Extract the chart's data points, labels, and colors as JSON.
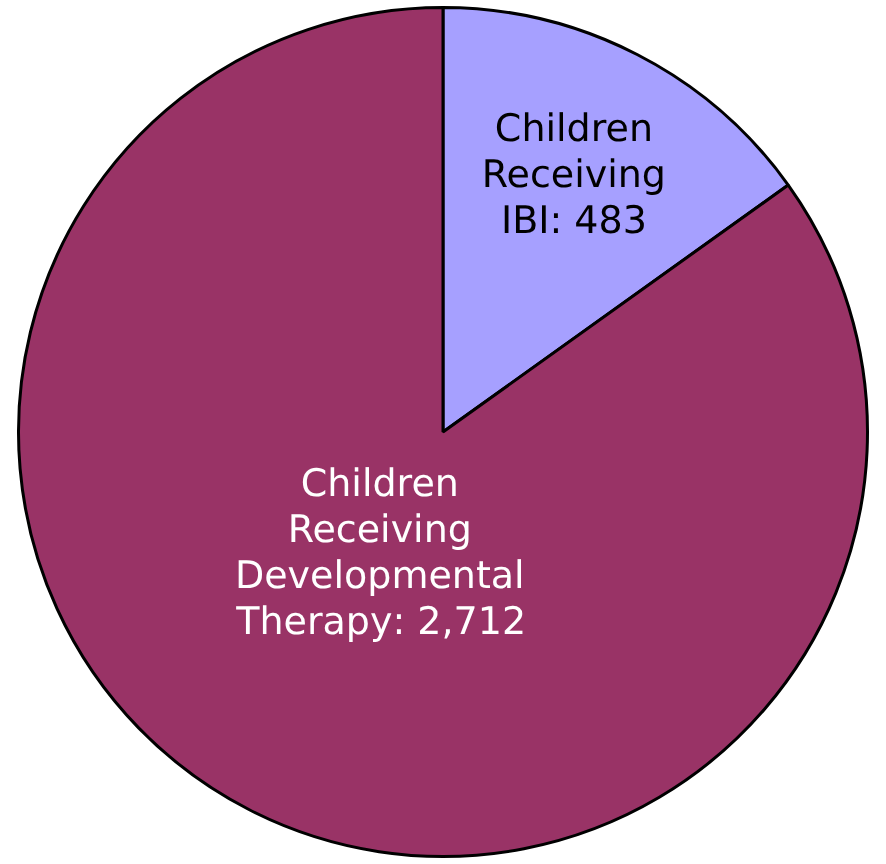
{
  "chart_data": {
    "type": "pie",
    "categories": [
      "Children Receiving IBI",
      "Children Receiving Developmental Therapy"
    ],
    "values": [
      483,
      2712
    ],
    "value_labels": [
      ": 483",
      ": 2,712"
    ],
    "colors": [
      "#a6a0ff",
      "#993366"
    ],
    "legend": false
  }
}
